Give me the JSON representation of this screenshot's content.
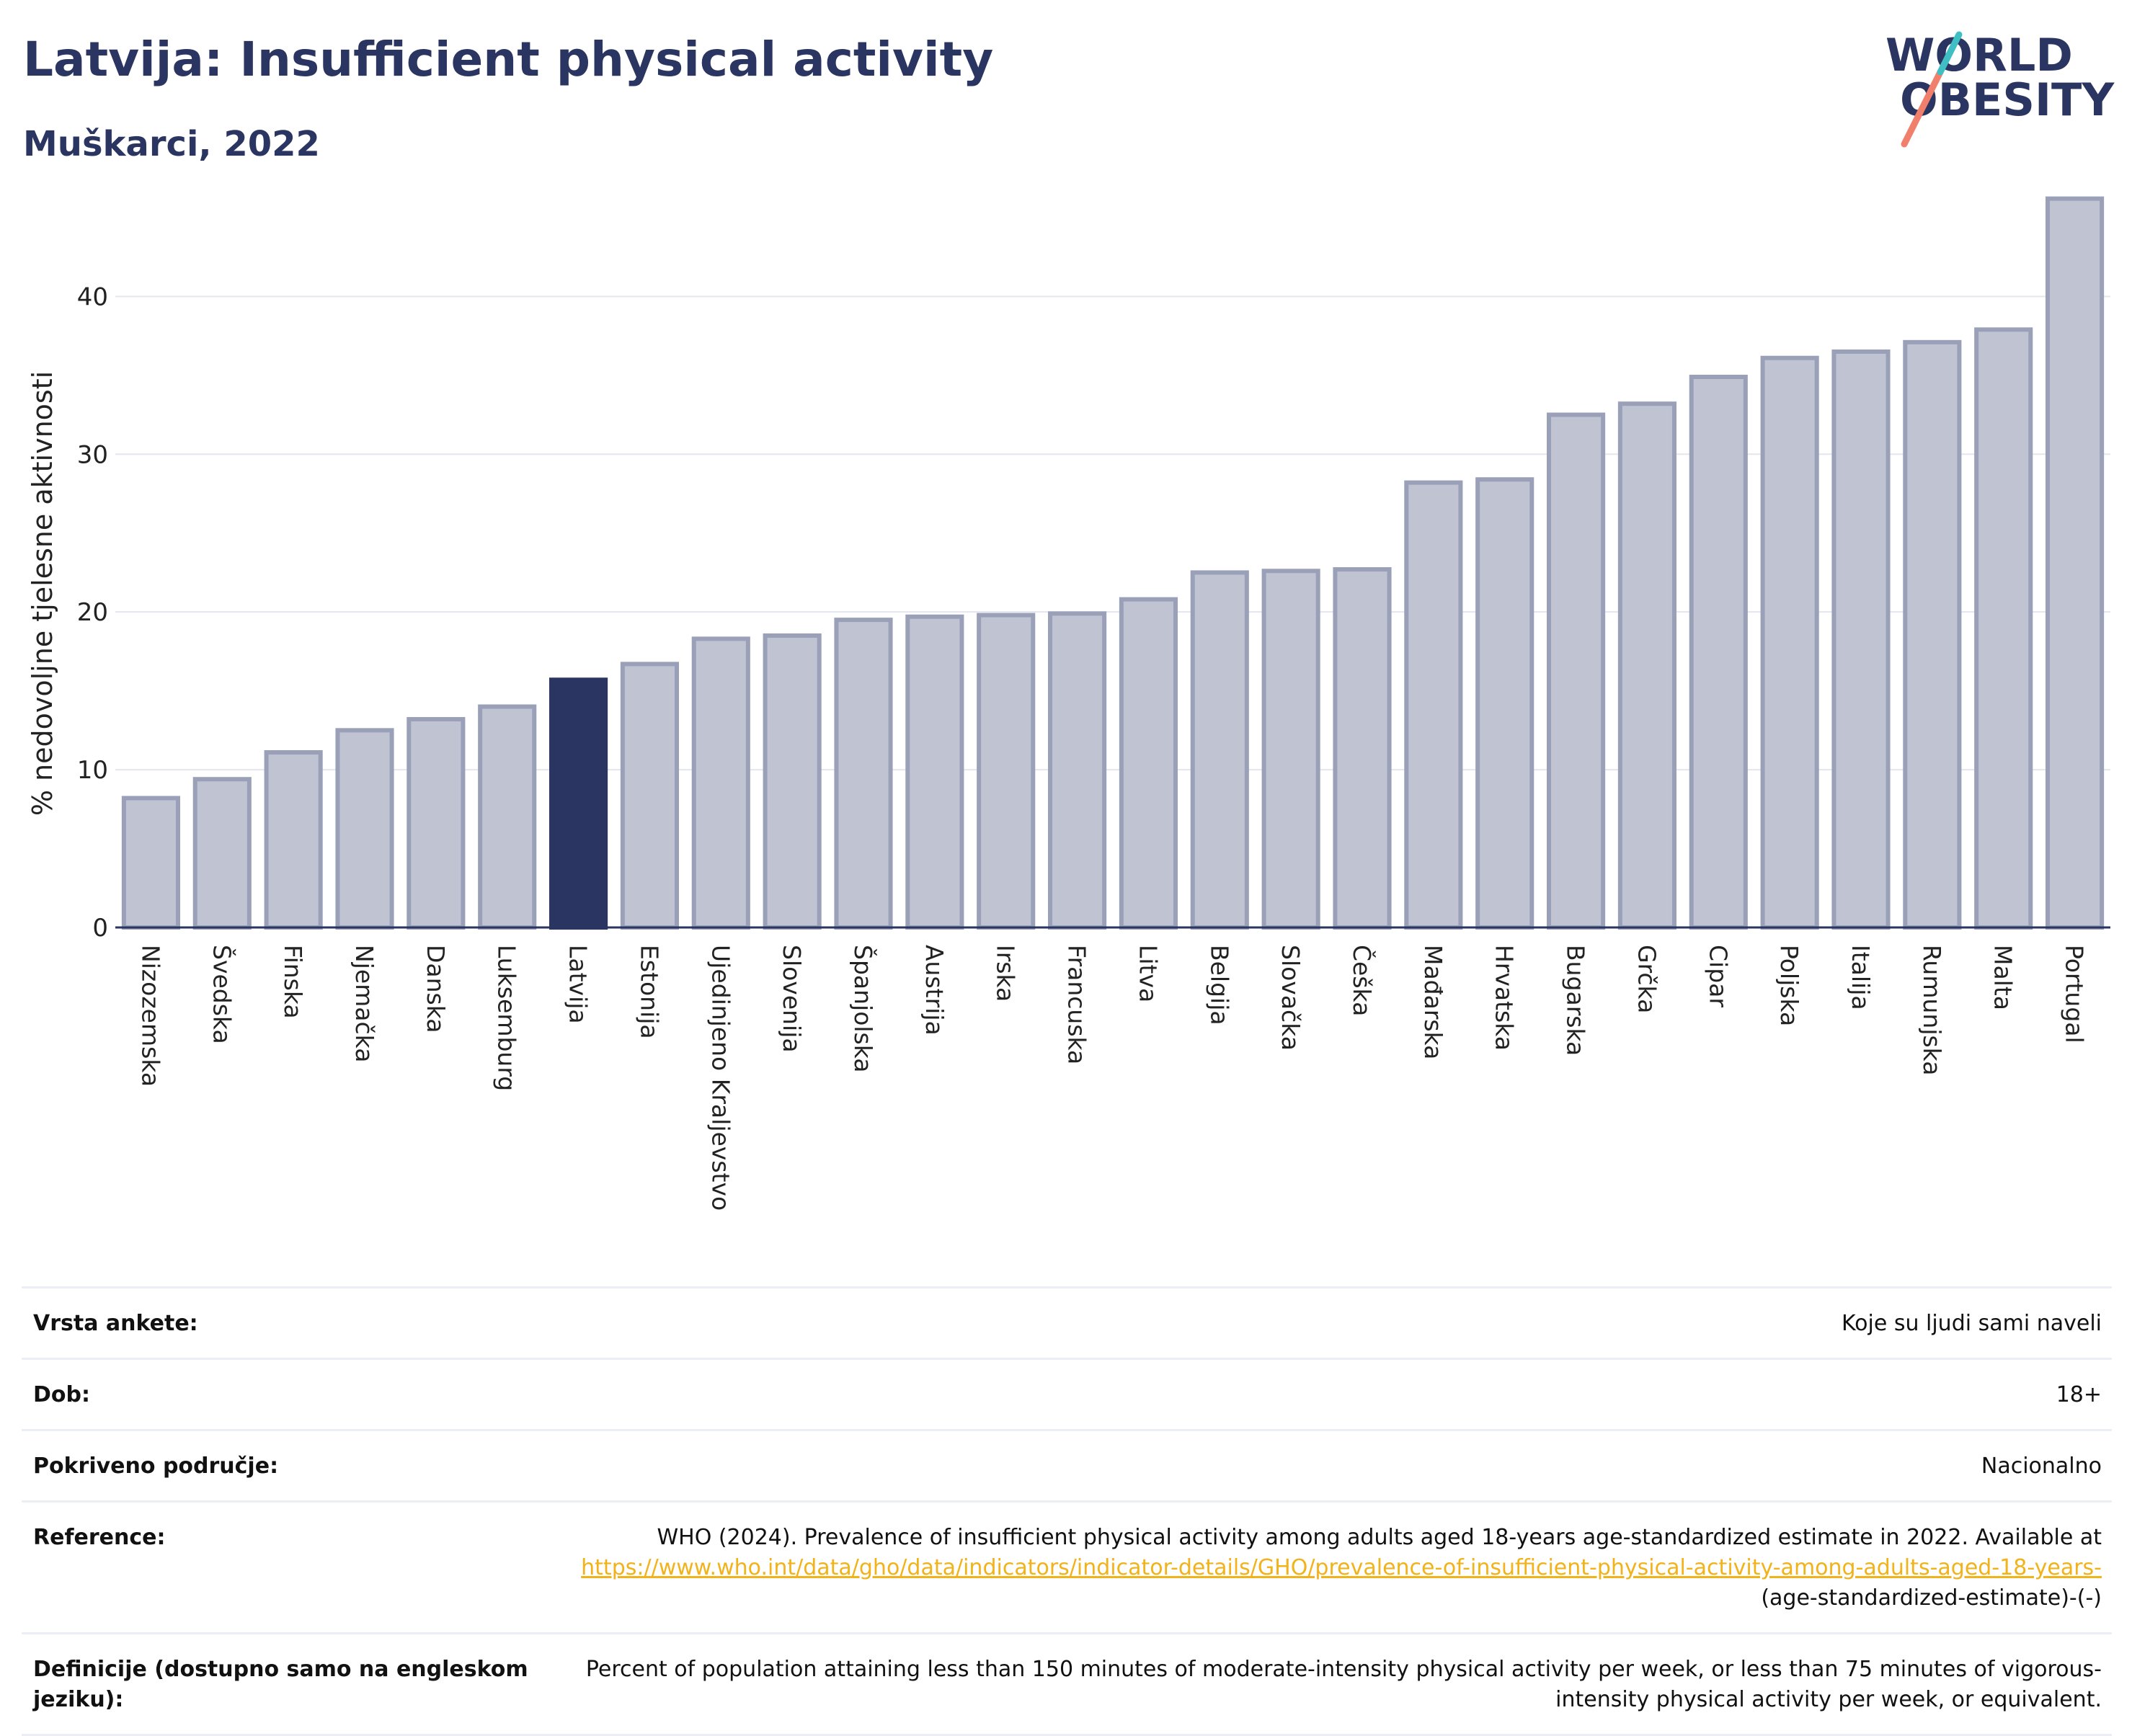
{
  "header": {
    "title": "Latvija: Insufficient physical activity",
    "subtitle": "Muškarci, 2022"
  },
  "logo": {
    "line1": "WORLD",
    "line2": "OBESITY",
    "text_color": "#2b3561",
    "slash_colors": [
      "#f07f6c",
      "#3fbfc4"
    ]
  },
  "chart_data": {
    "type": "bar",
    "ylabel": "% nedovoljne tjelesne aktivnosti",
    "xlabel": "",
    "ylim": [
      0,
      46
    ],
    "yticks": [
      0,
      10,
      20,
      30,
      40
    ],
    "grid": true,
    "highlight": "Latvija",
    "colors": {
      "bar": "#bfc3d2",
      "bar_edge": "#9aa0b8",
      "highlight": "#2b3561"
    },
    "categories": [
      "Nizozemska",
      "Švedska",
      "Finska",
      "Njemačka",
      "Danska",
      "Luksemburg",
      "Latvija",
      "Estonija",
      "Ujedinjeno Kraljevstvo",
      "Slovenija",
      "Španjolska",
      "Austrija",
      "Irska",
      "Francuska",
      "Litva",
      "Belgija",
      "Slovačka",
      "Češka",
      "Mađarska",
      "Hrvatska",
      "Bugarska",
      "Grčka",
      "Cipar",
      "Poljska",
      "Italija",
      "Rumunjska",
      "Malta",
      "Portugal"
    ],
    "values": [
      8.2,
      9.4,
      11.1,
      12.5,
      13.2,
      14.0,
      15.7,
      16.7,
      18.3,
      18.5,
      19.5,
      19.7,
      19.8,
      19.9,
      20.8,
      22.5,
      22.6,
      22.7,
      28.2,
      28.4,
      32.5,
      33.2,
      34.9,
      36.1,
      36.5,
      37.1,
      37.9,
      46.2
    ]
  },
  "meta": {
    "survey_type_label": "Vrsta ankete:",
    "survey_type_value": "Koje su ljudi sami naveli",
    "age_label": "Dob:",
    "age_value": "18+",
    "coverage_label": "Pokriveno područje:",
    "coverage_value": "Nacionalno",
    "reference_label": "Reference:",
    "reference_text": "WHO (2024). Prevalence of insufficient physical activity among adults aged 18-years age-standardized estimate in 2022. Available at",
    "reference_link": "https://www.who.int/data/gho/data/indicators/indicator-details/GHO/prevalence-of-insufficient-physical-activity-among-adults-aged-18-years-",
    "reference_suffix": "(age-standardized-estimate)-(-)",
    "definitions_label": "Definicije (dostupno samo na engleskom jeziku):",
    "definitions_value": "Percent of population attaining less than 150 minutes of moderate-intensity physical activity per week, or less than 75 minutes of vigorous-intensity physical activity per week, or equivalent."
  }
}
